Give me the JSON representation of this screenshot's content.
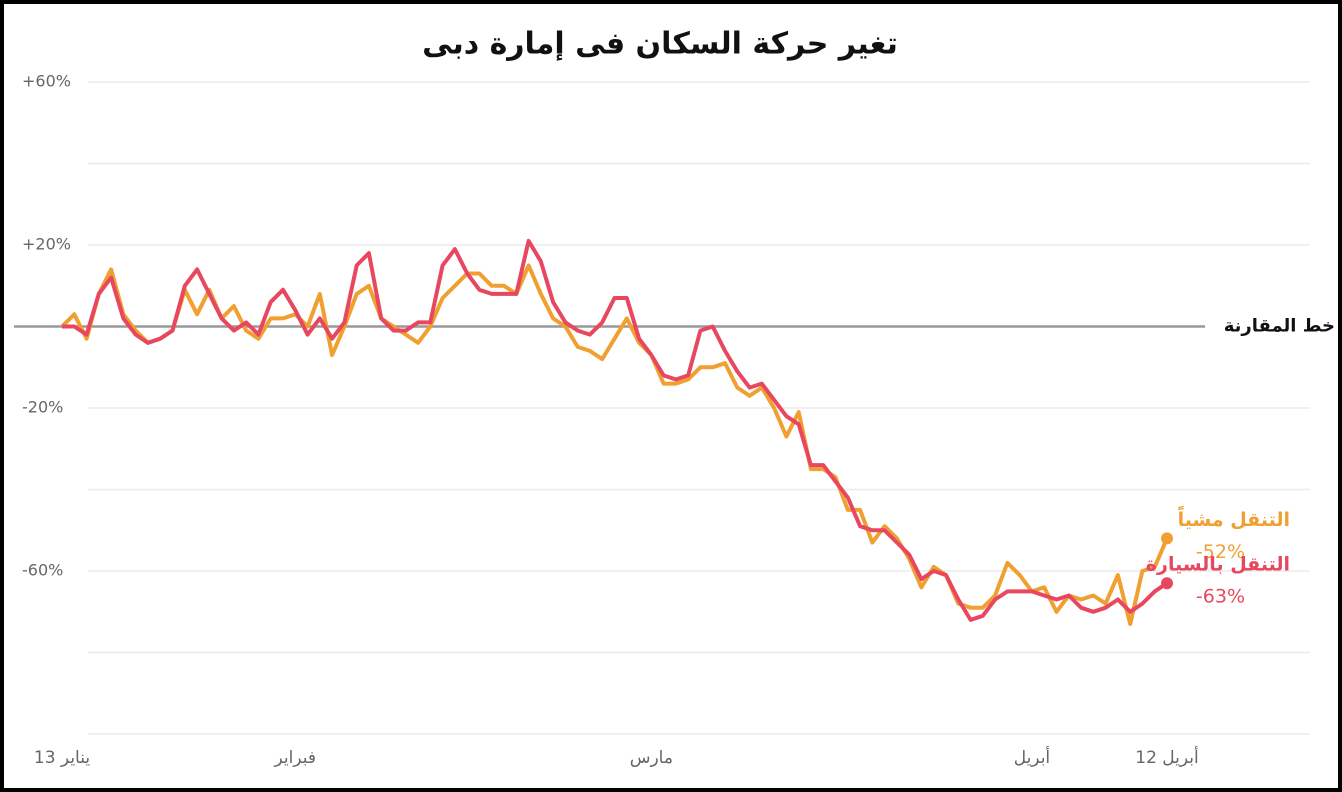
{
  "chart_data": {
    "type": "line",
    "title": "تغير حركة السكان فى إمارة دبى",
    "categories": [
      "يناير 13",
      null,
      null,
      null,
      null,
      null,
      null,
      null,
      null,
      null,
      null,
      null,
      null,
      null,
      null,
      null,
      null,
      null,
      null,
      "فبراير",
      null,
      null,
      null,
      null,
      null,
      null,
      null,
      null,
      null,
      null,
      null,
      null,
      null,
      null,
      null,
      null,
      null,
      null,
      null,
      null,
      null,
      null,
      null,
      null,
      null,
      null,
      null,
      null,
      "مارس",
      null,
      null,
      null,
      null,
      null,
      null,
      null,
      null,
      null,
      null,
      null,
      null,
      null,
      null,
      null,
      null,
      null,
      null,
      null,
      null,
      null,
      null,
      null,
      null,
      null,
      null,
      null,
      null,
      null,
      null,
      "أبريل",
      null,
      null,
      null,
      null,
      null,
      null,
      null,
      null,
      null,
      null,
      "أبريل 12"
    ],
    "series": [
      {
        "name": "التنقل مشياً",
        "color": "#f0a030",
        "values": [
          0,
          3,
          -3,
          8,
          14,
          3,
          -1,
          -4,
          -3,
          -1,
          9,
          3,
          9,
          2,
          5,
          -1,
          -3,
          2,
          2,
          3,
          0,
          8,
          -7,
          0,
          8,
          10,
          2,
          0,
          -2,
          -4,
          0,
          7,
          10,
          13,
          13,
          10,
          10,
          8,
          15,
          8,
          2,
          0,
          -5,
          -6,
          -8,
          -3,
          2,
          -4,
          -7,
          -14,
          -14,
          -13,
          -10,
          -10,
          -9,
          -15,
          -17,
          -15,
          -20,
          -27,
          -21,
          -35,
          -35,
          -37,
          -45,
          -45,
          -53,
          -49,
          -52,
          -57,
          -64,
          -59,
          -61,
          -68,
          -69,
          -69,
          -66,
          -58,
          -61,
          -65,
          -64,
          -70,
          -66,
          -67,
          -66,
          -68,
          -61,
          -73,
          -60,
          -59,
          -52
        ],
        "value_labels": [
          null,
          null,
          null,
          null,
          null,
          null,
          null,
          null,
          null,
          null,
          null,
          null,
          null,
          null,
          null,
          null,
          null,
          null,
          null,
          null,
          null,
          null,
          null,
          null,
          null,
          null,
          null,
          null,
          null,
          null,
          null,
          null,
          null,
          null,
          null,
          null,
          null,
          null,
          null,
          null,
          null,
          null,
          null,
          null,
          null,
          null,
          null,
          null,
          null,
          null,
          null,
          null,
          null,
          null,
          null,
          null,
          null,
          null,
          null,
          null,
          null,
          null,
          null,
          null,
          null,
          null,
          null,
          null,
          null,
          null,
          null,
          null,
          null,
          null,
          null,
          null,
          null,
          null,
          null,
          null,
          null,
          null,
          null,
          null,
          null,
          null,
          null,
          null,
          null,
          null,
          "-52%"
        ]
      },
      {
        "name": "التنقل بالسيارة",
        "color": "#e8485f",
        "values": [
          0,
          0,
          -2,
          8,
          12,
          2,
          -2,
          -4,
          -3,
          -1,
          10,
          14,
          8,
          2,
          -1,
          1,
          -2,
          6,
          9,
          4,
          -2,
          2,
          -3,
          1,
          15,
          18,
          2,
          -1,
          -1,
          1,
          1,
          15,
          19,
          13,
          9,
          8,
          8,
          8,
          21,
          16,
          6,
          1,
          -1,
          -2,
          1,
          7,
          7,
          -3,
          -7,
          -12,
          -13,
          -12,
          -1,
          0,
          -6,
          -11,
          -15,
          -14,
          -18,
          -22,
          -24,
          -34,
          -34,
          -38,
          -42,
          -49,
          -50,
          -50,
          -53,
          -56,
          -62,
          -60,
          -61,
          -67,
          -72,
          -71,
          -67,
          -65,
          -65,
          -65,
          -66,
          -67,
          -66,
          -69,
          -70,
          -69,
          -67,
          -70,
          -68,
          -65,
          -63
        ],
        "value_labels": [
          null,
          null,
          null,
          null,
          null,
          null,
          null,
          null,
          null,
          null,
          null,
          null,
          null,
          null,
          null,
          null,
          null,
          null,
          null,
          null,
          null,
          null,
          null,
          null,
          null,
          null,
          null,
          null,
          null,
          null,
          null,
          null,
          null,
          null,
          null,
          null,
          null,
          null,
          null,
          null,
          null,
          null,
          null,
          null,
          null,
          null,
          null,
          null,
          null,
          null,
          null,
          null,
          null,
          null,
          null,
          null,
          null,
          null,
          null,
          null,
          null,
          null,
          null,
          null,
          null,
          null,
          null,
          null,
          null,
          null,
          null,
          null,
          null,
          null,
          null,
          null,
          null,
          null,
          null,
          null,
          null,
          null,
          null,
          null,
          null,
          null,
          null,
          null,
          null,
          null,
          "-63%"
        ]
      }
    ],
    "ylim": [
      -100,
      60
    ],
    "yticks": [
      {
        "value": 60,
        "label": "+60%"
      },
      {
        "value": 20,
        "label": "+20%"
      },
      {
        "value": -20,
        "label": "-20%"
      },
      {
        "value": -60,
        "label": "-60%"
      }
    ],
    "minor_yticks": [
      40,
      -40,
      -80
    ],
    "baseline": {
      "value": 0,
      "label": "خط المقارنة"
    },
    "grid": true
  }
}
